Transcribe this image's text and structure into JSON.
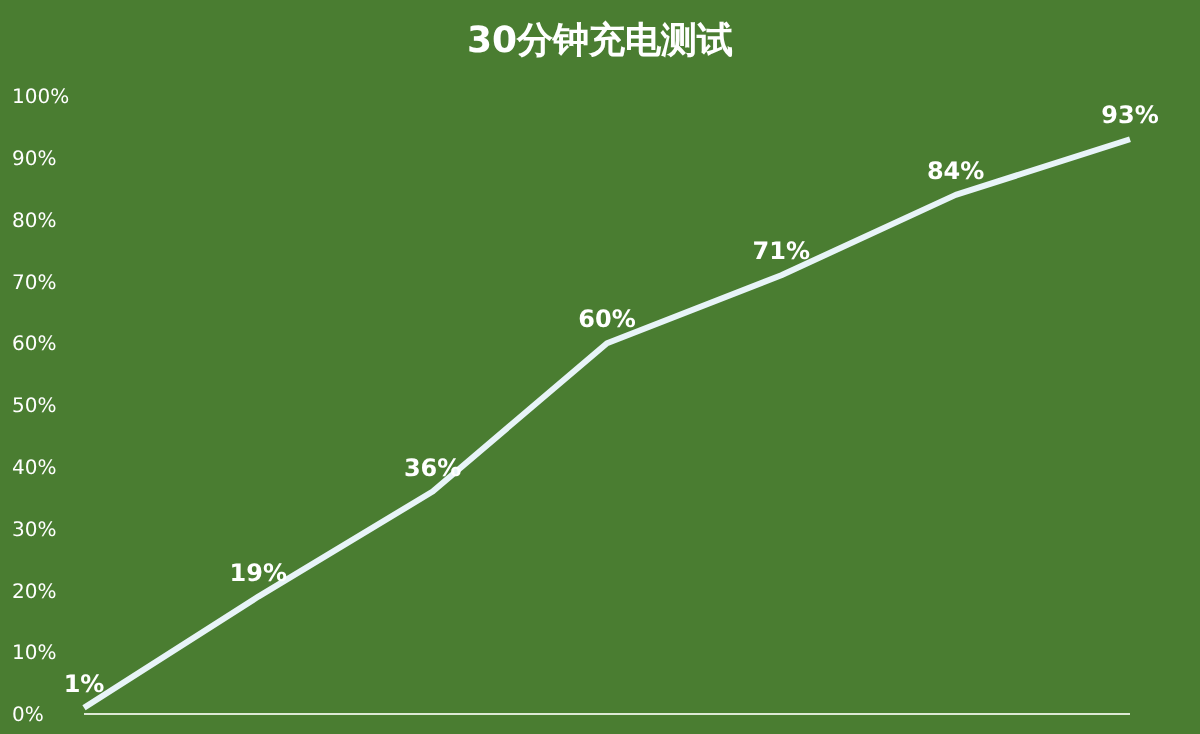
{
  "chart_data": {
    "type": "line",
    "title": "30分钟充电测试",
    "categories": [
      null,
      null,
      null,
      null,
      null,
      null,
      null
    ],
    "series": [
      {
        "color": "#e8f4f8",
        "values": [
          1,
          19,
          36,
          60,
          71,
          84,
          93
        ],
        "value_labels": [
          "1%",
          "19%",
          "36%",
          "60%",
          "71%",
          "84%",
          "93%"
        ]
      }
    ],
    "ylim": [
      0,
      100
    ],
    "yticks": [
      {
        "value": 0,
        "label": "0%"
      },
      {
        "value": 10,
        "label": "10%"
      },
      {
        "value": 20,
        "label": "20%"
      },
      {
        "value": 30,
        "label": "30%"
      },
      {
        "value": 40,
        "label": "40%"
      },
      {
        "value": 50,
        "label": "50%"
      },
      {
        "value": 60,
        "label": "60%"
      },
      {
        "value": 70,
        "label": "70%"
      },
      {
        "value": 80,
        "label": "80%"
      },
      {
        "value": 90,
        "label": "90%"
      },
      {
        "value": 100,
        "label": "100%"
      }
    ],
    "grid": false,
    "legend": false,
    "marker": "none",
    "line_style": "solid"
  }
}
